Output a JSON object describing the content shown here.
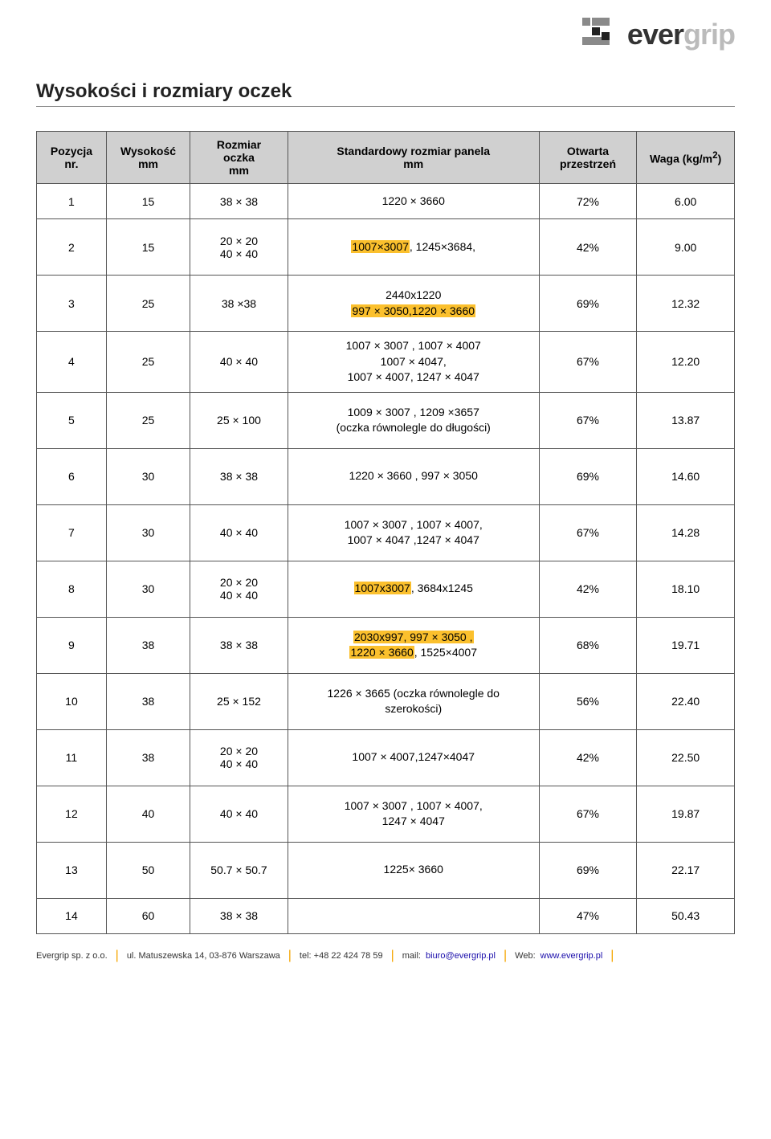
{
  "logo": {
    "ever": "ever",
    "grip": "grip"
  },
  "title": "Wysokości i rozmiary oczek",
  "table": {
    "columns": [
      "Pozycja nr.",
      "Wysokość mm",
      "Rozmiar oczka mm",
      "Standardowy rozmiar panela mm",
      "Otwarta przestrzeń",
      "Waga (kg/m²)"
    ],
    "col_widths": [
      "10%",
      "12%",
      "14%",
      "36%",
      "14%",
      "14%"
    ],
    "rows": [
      {
        "nr": "1",
        "h": "15",
        "oczko": "38 × 38",
        "panel_segments": [
          {
            "t": "1220 × 3660"
          }
        ],
        "open": "72%",
        "waga": "6.00",
        "short": true
      },
      {
        "nr": "2",
        "h": "15",
        "oczko": "20 × 20\n40 × 40",
        "panel_segments": [
          {
            "t": "1007×3007",
            "hl": true
          },
          {
            "t": ", 1245×3684,"
          }
        ],
        "open": "42%",
        "waga": "9.00"
      },
      {
        "nr": "3",
        "h": "25",
        "oczko": "38 ×38",
        "panel_segments": [
          {
            "t": "2440x1220"
          },
          {
            "br": true
          },
          {
            "t": "997 × 3050,1220 × 3660",
            "hl": true
          }
        ],
        "open": "69%",
        "waga": "12.32"
      },
      {
        "nr": "4",
        "h": "25",
        "oczko": "40 × 40",
        "panel_segments": [
          {
            "t": "1007 × 3007 , 1007 × 4007"
          },
          {
            "br": true
          },
          {
            "t": "1007 × 4047,"
          },
          {
            "br": true
          },
          {
            "t": "1007 × 4007, 1247 × 4047"
          }
        ],
        "open": "67%",
        "waga": "12.20"
      },
      {
        "nr": "5",
        "h": "25",
        "oczko": "25 × 100",
        "panel_segments": [
          {
            "t": "1009 × 3007 , 1209 ×3657"
          },
          {
            "br": true
          },
          {
            "t": "(oczka równolegle do długości)"
          }
        ],
        "open": "67%",
        "waga": "13.87"
      },
      {
        "nr": "6",
        "h": "30",
        "oczko": "38 × 38",
        "panel_segments": [
          {
            "t": "1220 × 3660 , 997 × 3050"
          }
        ],
        "open": "69%",
        "waga": "14.60"
      },
      {
        "nr": "7",
        "h": "30",
        "oczko": "40 × 40",
        "panel_segments": [
          {
            "t": "1007 × 3007 , 1007 × 4007,"
          },
          {
            "br": true
          },
          {
            "t": "1007 × 4047 ,1247 × 4047"
          }
        ],
        "open": "67%",
        "waga": "14.28"
      },
      {
        "nr": "8",
        "h": "30",
        "oczko": "20 × 20\n40 × 40",
        "panel_segments": [
          {
            "t": "1007x3007",
            "hl": true
          },
          {
            "t": ", 3684x1245"
          }
        ],
        "open": "42%",
        "waga": "18.10"
      },
      {
        "nr": "9",
        "h": "38",
        "oczko": "38 × 38",
        "panel_segments": [
          {
            "t": "2030x997, 997 × 3050 ,",
            "hl": true
          },
          {
            "br": true
          },
          {
            "t": "1220 × 3660",
            "hl": true
          },
          {
            "t": ", 1525×4007"
          }
        ],
        "open": "68%",
        "waga": "19.71"
      },
      {
        "nr": "10",
        "h": "38",
        "oczko": "25 × 152",
        "panel_segments": [
          {
            "t": "1226 × 3665 (oczka równolegle do"
          },
          {
            "br": true
          },
          {
            "t": "szerokości)"
          }
        ],
        "open": "56%",
        "waga": "22.40"
      },
      {
        "nr": "11",
        "h": "38",
        "oczko": "20 × 20\n40 × 40",
        "panel_segments": [
          {
            "t": "1007 × 4007,1247×4047"
          }
        ],
        "open": "42%",
        "waga": "22.50"
      },
      {
        "nr": "12",
        "h": "40",
        "oczko": "40 × 40",
        "panel_segments": [
          {
            "t": "1007 × 3007 , 1007 × 4007,"
          },
          {
            "br": true
          },
          {
            "t": "1247 × 4047"
          }
        ],
        "open": "67%",
        "waga": "19.87"
      },
      {
        "nr": "13",
        "h": "50",
        "oczko": "50.7 × 50.7",
        "panel_segments": [
          {
            "t": "1225× 3660"
          }
        ],
        "open": "69%",
        "waga": "22.17"
      },
      {
        "nr": "14",
        "h": "60",
        "oczko": "38 × 38",
        "panel_segments": [],
        "open": "47%",
        "waga": "50.43",
        "short": true
      }
    ]
  },
  "footer": {
    "company": "Evergrip sp. z o.o.",
    "address": "ul. Matuszewska 14, 03-876 Warszawa",
    "tel_label": "tel: +48 22 424 78 59",
    "mail_label": "mail: ",
    "mail_value": "biuro@evergrip.pl",
    "web_label": "Web: ",
    "web_value": "www.evergrip.pl"
  },
  "colors": {
    "header_bg": "#d0d0d0",
    "border": "#555555",
    "highlight": "#fbc02d",
    "sep": "#f5a600",
    "link": "#1a0dab"
  }
}
